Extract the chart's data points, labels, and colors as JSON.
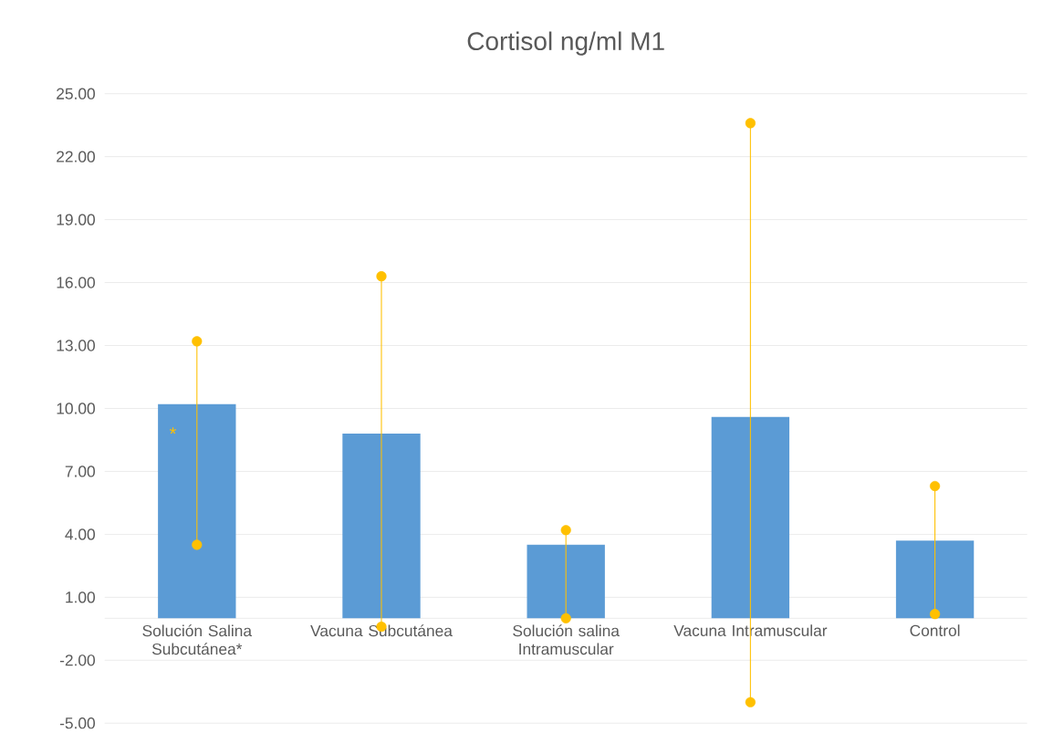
{
  "chart_data": {
    "type": "bar",
    "title": "Cortisol ng/ml M1",
    "categories": [
      "Solución Salina Subcutánea*",
      "Vacuna Subcutánea",
      "Solución salina Intramuscular",
      "Vacuna Intramuscular",
      "Control"
    ],
    "series": [
      {
        "color": "#5b9bd5",
        "values": [
          10.2,
          8.8,
          3.5,
          9.6,
          3.7
        ]
      },
      {
        "type": "scatter",
        "color": "#ffc000",
        "x": [
          "Solución Salina Subcutánea*",
          "Vacuna Subcutánea",
          "Solución salina Intramuscular",
          "Vacuna Intramuscular",
          "Control"
        ],
        "values": [
          13.2,
          16.3,
          4.2,
          23.6,
          6.3
        ],
        "marker": "circle"
      },
      {
        "type": "scatter",
        "color": "#ffc000",
        "x": [
          "Solución Salina Subcutánea*",
          "Vacuna Subcutánea",
          "Solución salina Intramuscular",
          "Vacuna Intramuscular",
          "Control"
        ],
        "values": [
          3.5,
          -0.4,
          0.0,
          -4.0,
          0.2
        ],
        "marker": "circle"
      }
    ],
    "annotations": [
      "*"
    ],
    "ylim": [
      -5,
      25
    ],
    "yticks": [
      {
        "value": -5,
        "label": "-5.00"
      },
      {
        "value": -2,
        "label": "-2.00"
      },
      {
        "value": 1,
        "label": "1.00"
      },
      {
        "value": 4,
        "label": "4.00"
      },
      {
        "value": 7,
        "label": "7.00"
      },
      {
        "value": 10,
        "label": "10.00"
      },
      {
        "value": 13,
        "label": "13.00"
      },
      {
        "value": 16,
        "label": "16.00"
      },
      {
        "value": 19,
        "label": "19.00"
      },
      {
        "value": 22,
        "label": "22.00"
      },
      {
        "value": 25,
        "label": "25.00"
      }
    ],
    "grid": "y"
  }
}
